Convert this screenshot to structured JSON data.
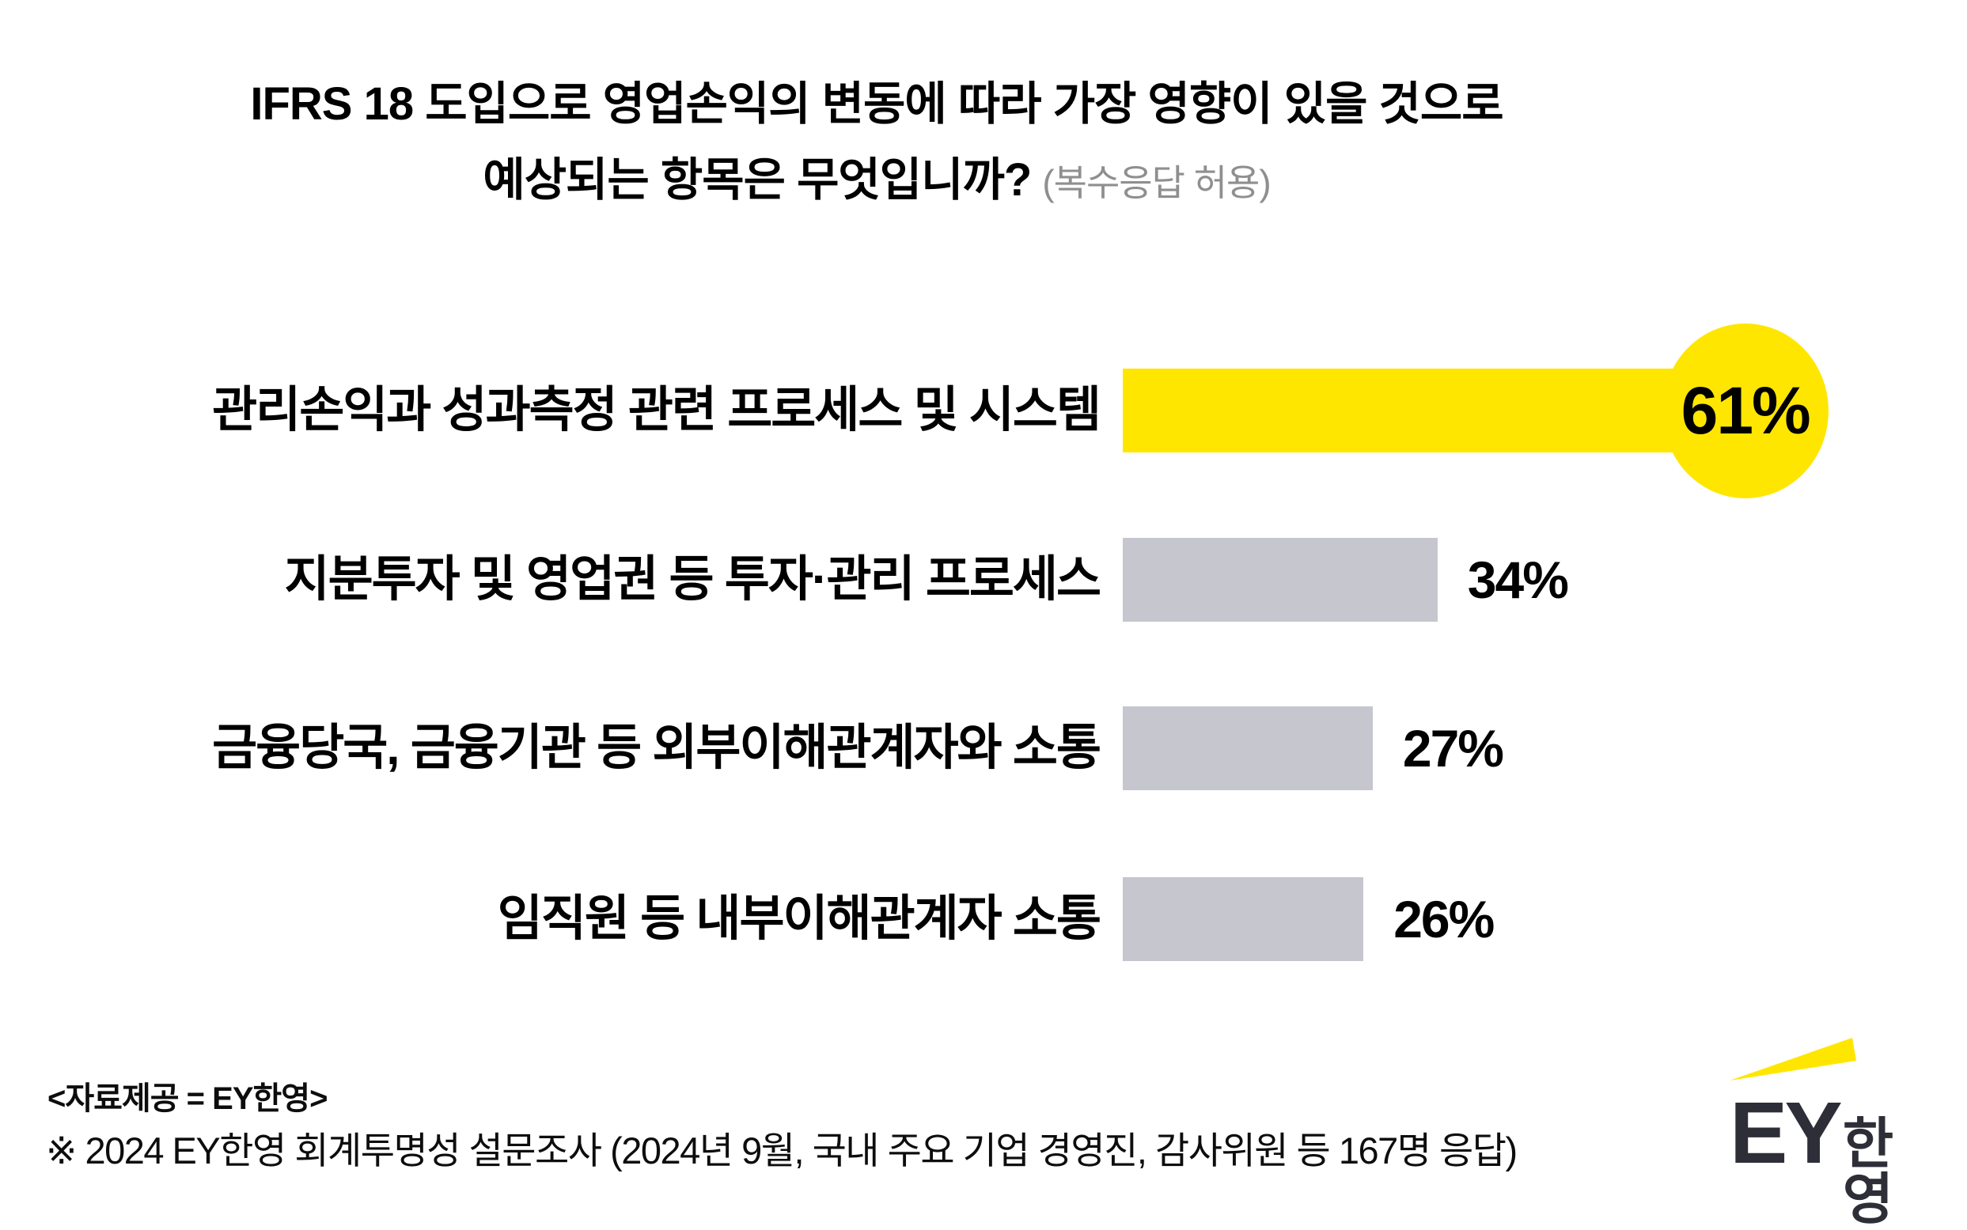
{
  "title": {
    "line1": "IFRS 18 도입으로 영업손익의 변동에 따라 가장 영향이 있을 것으로",
    "line2": "예상되는 항목은 무엇입니까?",
    "note": "(복수응답 허용)"
  },
  "chart_data": {
    "type": "bar",
    "orientation": "horizontal",
    "unit": "%",
    "categories": [
      "관리손익과 성과측정 관련 프로세스 및 시스템",
      "지분투자 및 영업권 등 투자·관리 프로세스",
      "금융당국, 금융기관 등 외부이해관계자와 소통",
      "임직원 등 내부이해관계자 소통"
    ],
    "values": [
      61,
      34,
      27,
      26
    ],
    "value_labels": [
      "61%",
      "34%",
      "27%",
      "26%"
    ],
    "highlight_index": 0,
    "xlim": [
      0,
      65
    ],
    "grid": false,
    "legend": false,
    "colors": {
      "highlight": "#FFE600",
      "default": "#C6C6CF",
      "value_text": "#000000",
      "note_gray": "#8F8F8F"
    }
  },
  "footer": {
    "source": "<자료제공 = EY한영>",
    "survey_note": "※ 2024 EY한영 회계투명성 설문조사 (2024년 9월, 국내 주요 기업 경영진, 감사위원 등 167명 응답)"
  },
  "logo": {
    "wordmark": "EY",
    "suffix": "한영",
    "beam_color": "#FFE600",
    "text_color": "#2E2E38"
  }
}
